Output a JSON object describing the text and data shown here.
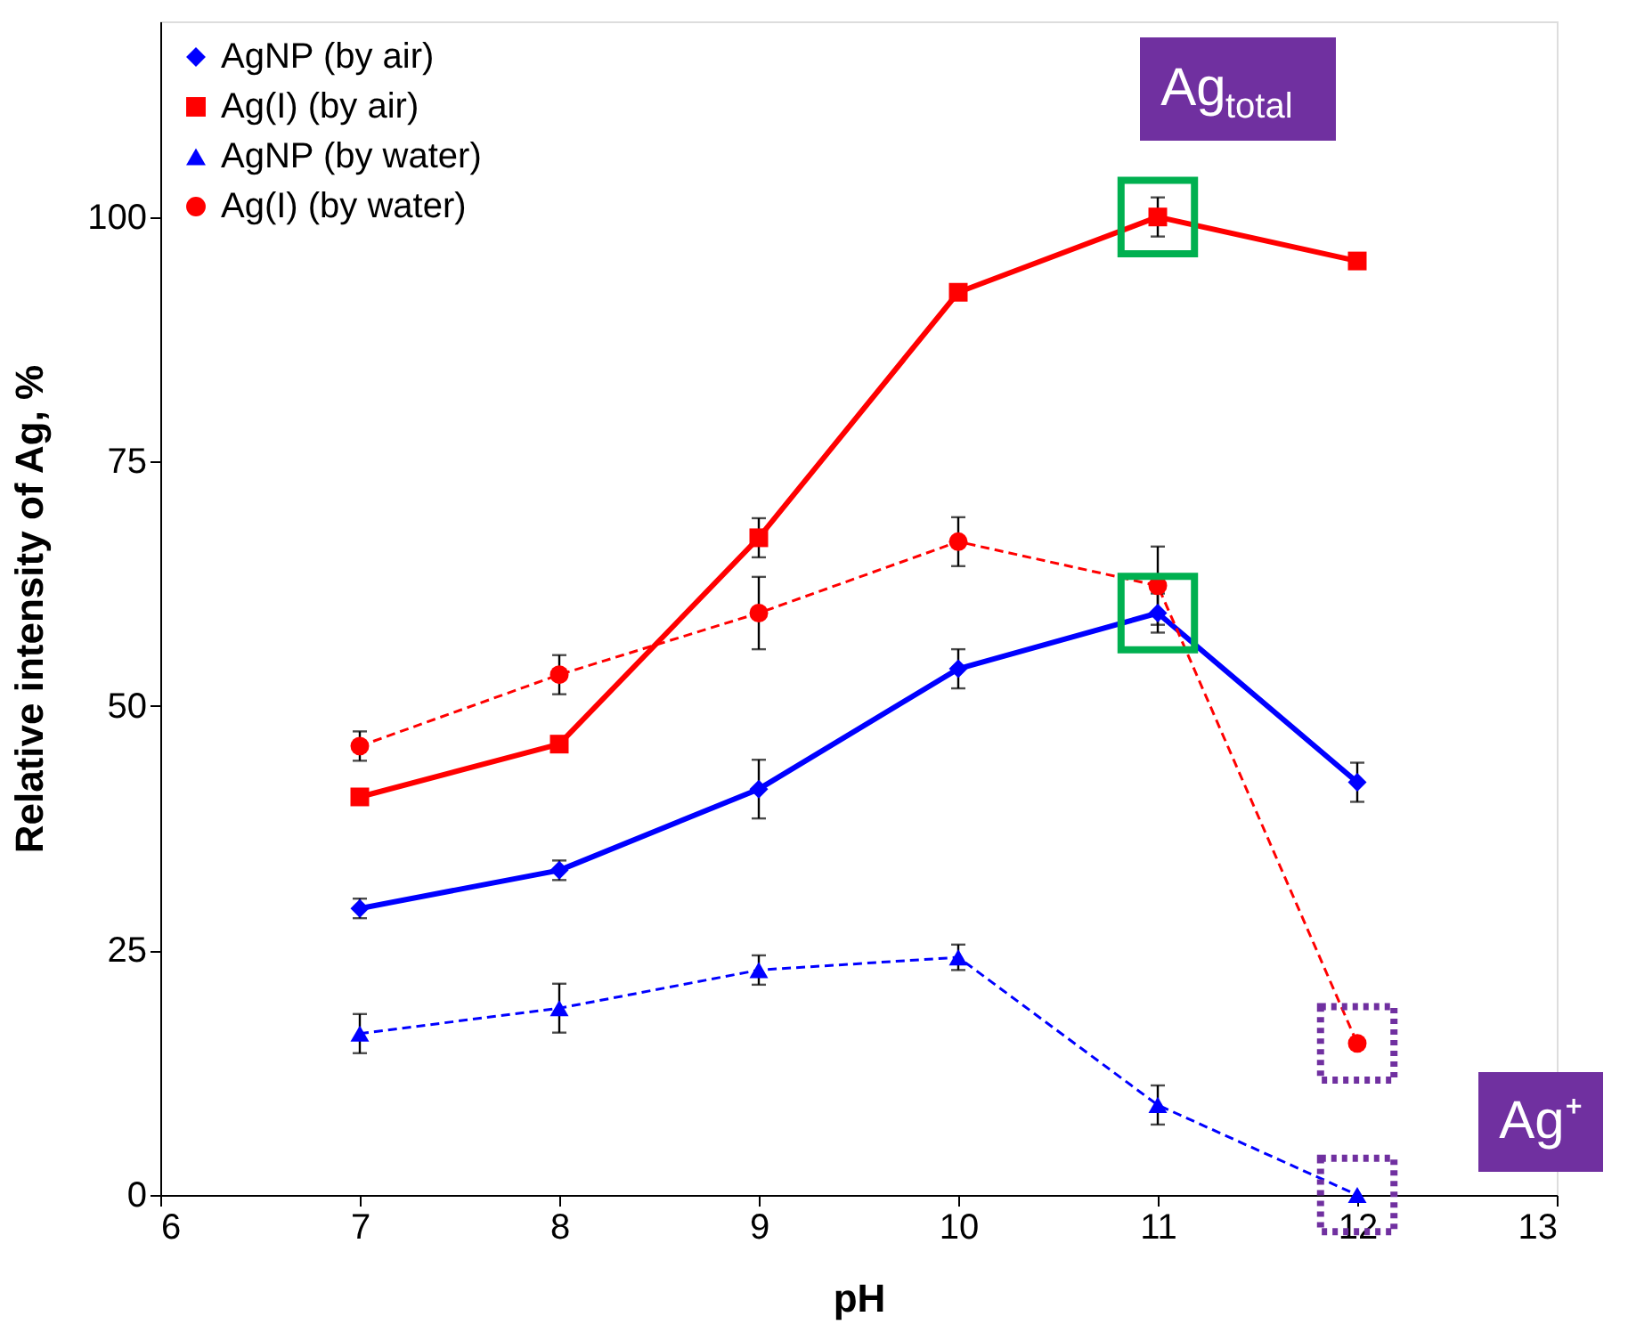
{
  "chart_data": {
    "type": "line",
    "xlabel": "pH",
    "ylabel": "Relative intensity of Ag, %",
    "x": [
      7,
      8,
      9,
      10,
      11,
      12
    ],
    "series": [
      {
        "name": "AgNP (by air)",
        "color": "#0000ff",
        "marker": "diamond",
        "line_style": "solid",
        "values": [
          29.3,
          33.2,
          41.5,
          53.8,
          59.5,
          42.2
        ],
        "errors": [
          1,
          1,
          3,
          2,
          2,
          2
        ]
      },
      {
        "name": "Ag(I) (by air)",
        "color": "#ff0000",
        "marker": "square",
        "line_style": "solid",
        "values": [
          40.7,
          46.1,
          67.2,
          92.3,
          100,
          95.5
        ],
        "errors": [
          null,
          null,
          2,
          null,
          2,
          null
        ]
      },
      {
        "name": "AgNP (by water)",
        "color": "#0000ff",
        "marker": "triangle",
        "line_style": "dashed",
        "values": [
          16.5,
          19.1,
          23.0,
          24.3,
          9.2,
          0
        ],
        "errors": [
          2,
          2.5,
          1.5,
          1.3,
          2,
          null
        ]
      },
      {
        "name": "Ag(I) (by water)",
        "color": "#ff0000",
        "marker": "circle",
        "line_style": "dashed",
        "values": [
          45.9,
          53.2,
          59.5,
          66.8,
          62.3,
          15.5
        ],
        "errors": [
          1.5,
          2,
          3.7,
          2.5,
          4,
          null
        ]
      }
    ],
    "xlim": [
      6,
      13
    ],
    "xticks": [
      6,
      7,
      8,
      9,
      10,
      11,
      12,
      13
    ],
    "ylim": [
      0,
      120
    ],
    "yticks": [
      0,
      25,
      50,
      75,
      100
    ],
    "grid": false,
    "legend": "top left",
    "annotations": [
      "Ag$_{total}$",
      "Ag⁺"
    ]
  }
}
